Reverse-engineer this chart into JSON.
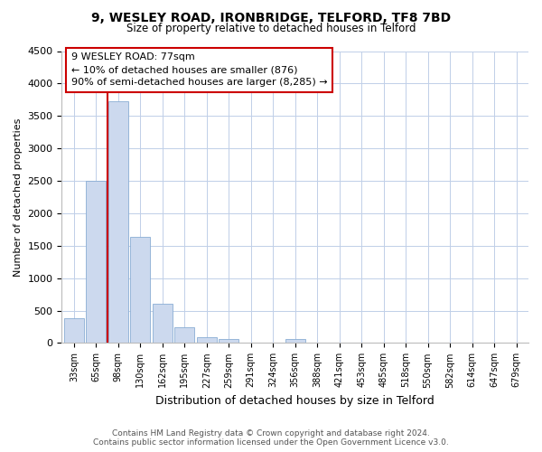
{
  "title": "9, WESLEY ROAD, IRONBRIDGE, TELFORD, TF8 7BD",
  "subtitle": "Size of property relative to detached houses in Telford",
  "xlabel": "Distribution of detached houses by size in Telford",
  "ylabel": "Number of detached properties",
  "bar_labels": [
    "33sqm",
    "65sqm",
    "98sqm",
    "130sqm",
    "162sqm",
    "195sqm",
    "227sqm",
    "259sqm",
    "291sqm",
    "324sqm",
    "356sqm",
    "388sqm",
    "421sqm",
    "453sqm",
    "485sqm",
    "518sqm",
    "550sqm",
    "582sqm",
    "614sqm",
    "647sqm",
    "679sqm"
  ],
  "bar_values": [
    380,
    2500,
    3730,
    1640,
    600,
    240,
    90,
    55,
    0,
    0,
    55,
    0,
    0,
    0,
    0,
    0,
    0,
    0,
    0,
    0,
    0
  ],
  "bar_color": "#ccd9ee",
  "bar_edge_color": "#8aadd4",
  "ylim": [
    0,
    4500
  ],
  "yticks": [
    0,
    500,
    1000,
    1500,
    2000,
    2500,
    3000,
    3500,
    4000,
    4500
  ],
  "property_line_label": "9 WESLEY ROAD: 77sqm",
  "annotation_line1": "← 10% of detached houses are smaller (876)",
  "annotation_line2": "90% of semi-detached houses are larger (8,285) →",
  "annotation_box_color": "#ffffff",
  "annotation_border_color": "#cc0000",
  "property_line_color": "#cc0000",
  "footer_line1": "Contains HM Land Registry data © Crown copyright and database right 2024.",
  "footer_line2": "Contains public sector information licensed under the Open Government Licence v3.0.",
  "background_color": "#ffffff",
  "grid_color": "#c0cfe8"
}
